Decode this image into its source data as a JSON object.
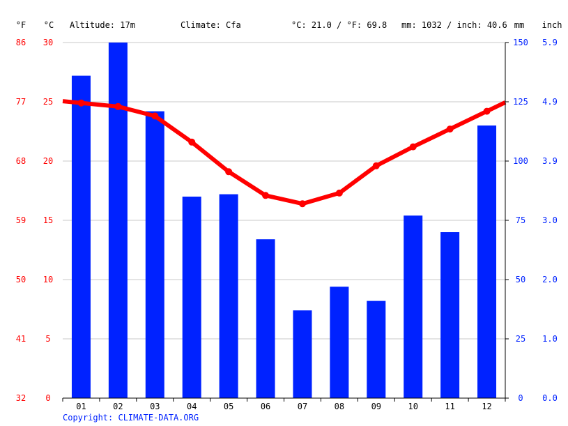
{
  "colors": {
    "temperature": "#ff0000",
    "precipitation": "#0022ff",
    "grid": "#c8c8c8",
    "axis": "#000000",
    "text": "#000000"
  },
  "header": {
    "unit_f": "°F",
    "unit_c": "°C",
    "altitude": "Altitude: 17m",
    "climate": "Climate: Cfa",
    "temp_summary": "°C: 21.0 / °F: 69.8",
    "precip_summary": "mm: 1032 / inch: 40.6",
    "unit_mm": "mm",
    "unit_inch": "inch"
  },
  "copyright": "Copyright: CLIMATE-DATA.ORG",
  "chart_data": {
    "type": "bar+line",
    "categories": [
      "01",
      "02",
      "03",
      "04",
      "05",
      "06",
      "07",
      "08",
      "09",
      "10",
      "11",
      "12"
    ],
    "series": [
      {
        "type": "bar",
        "axis": "right",
        "unit": "mm",
        "values": [
          136,
          150,
          121,
          85,
          86,
          67,
          37,
          47,
          41,
          77,
          70,
          115
        ]
      },
      {
        "type": "line",
        "axis": "left",
        "unit": "°C",
        "values": [
          24.9,
          24.6,
          23.8,
          21.6,
          19.1,
          17.1,
          16.4,
          17.3,
          19.6,
          21.2,
          22.7,
          24.2
        ]
      }
    ],
    "left_axis_c": {
      "range": [
        0,
        30
      ],
      "ticks": [
        "0",
        "5",
        "10",
        "15",
        "20",
        "25",
        "30"
      ]
    },
    "left_axis_f": {
      "ticks": [
        "32",
        "41",
        "50",
        "59",
        "68",
        "77",
        "86"
      ]
    },
    "right_axis_mm": {
      "range": [
        0,
        150
      ],
      "ticks": [
        "0",
        "25",
        "50",
        "75",
        "100",
        "125",
        "150"
      ]
    },
    "right_axis_inch": {
      "ticks": [
        "0.0",
        "1.0",
        "2.0",
        "3.0",
        "3.9",
        "4.9",
        "5.9"
      ]
    },
    "grid": true
  }
}
